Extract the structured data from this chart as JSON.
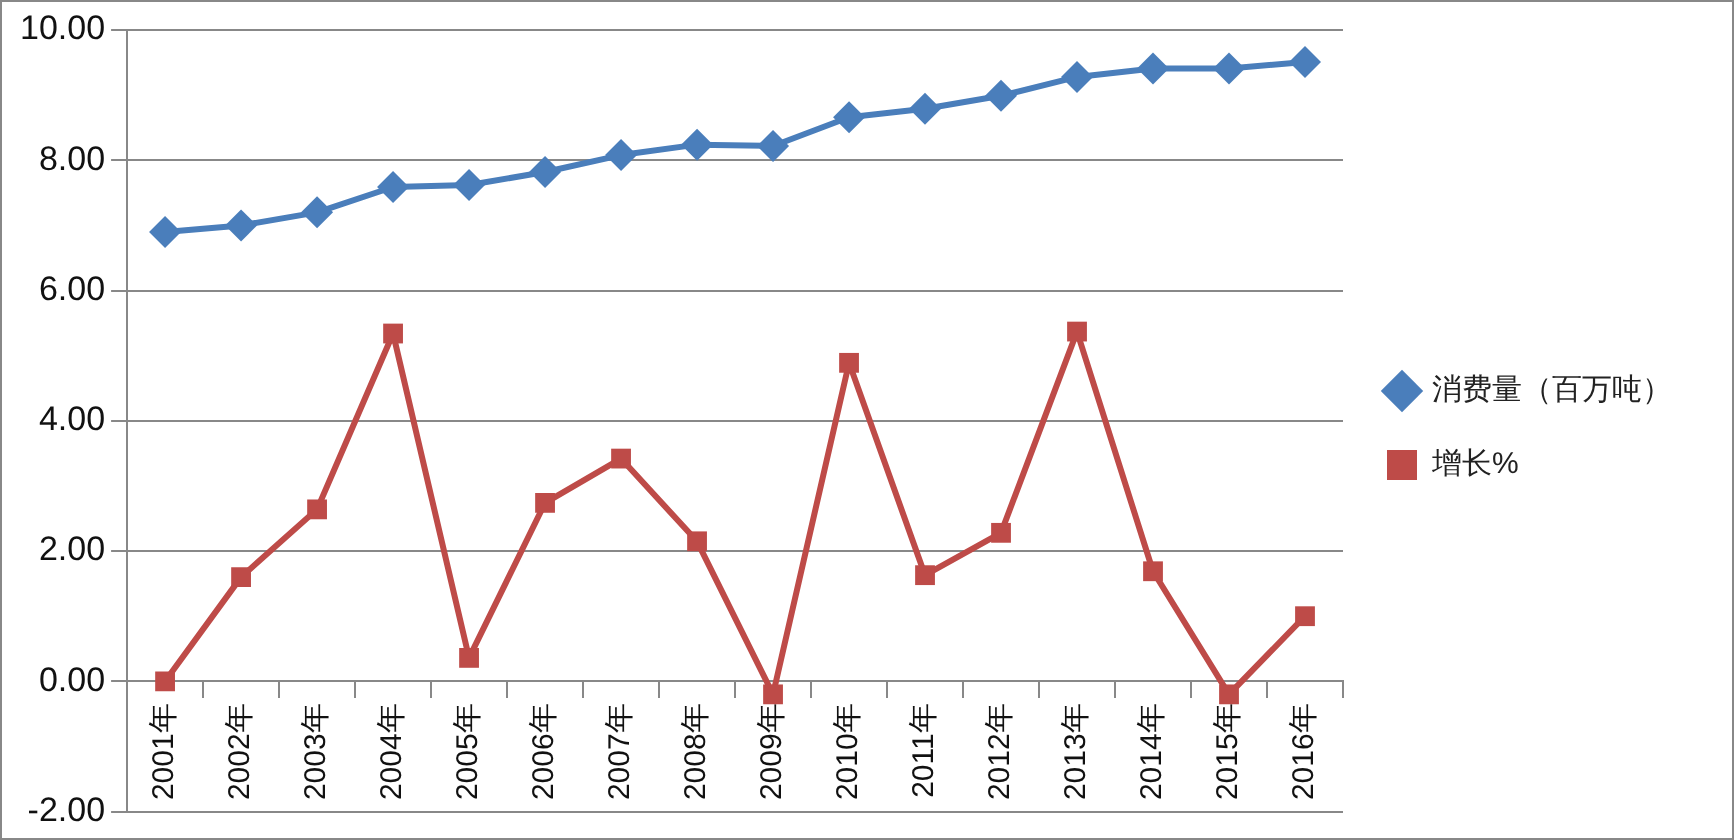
{
  "chart_data": {
    "type": "line",
    "categories": [
      "2001年",
      "2002年",
      "2003年",
      "2004年",
      "2005年",
      "2006年",
      "2007年",
      "2008年",
      "2009年",
      "2010年",
      "2011年",
      "2012年",
      "2013年",
      "2014年",
      "2015年",
      "2016年"
    ],
    "series": [
      {
        "name": "消费量（百万吨）",
        "color": "#4a7ebb",
        "marker": "diamond",
        "values": [
          6.9,
          7.0,
          7.2,
          7.59,
          7.62,
          7.82,
          8.08,
          8.24,
          8.22,
          8.66,
          8.79,
          8.99,
          9.28,
          9.41,
          9.41,
          9.51
        ]
      },
      {
        "name": "增长%",
        "color": "#be4b48",
        "marker": "square",
        "values": [
          0,
          1.6,
          2.64,
          5.34,
          0.36,
          2.74,
          3.42,
          2.15,
          -0.2,
          4.89,
          1.63,
          2.28,
          5.37,
          1.69,
          -0.2,
          1.0
        ]
      }
    ],
    "ylim": [
      -2,
      10
    ],
    "yticks": [
      {
        "value": -2,
        "label": "-2.00"
      },
      {
        "value": 0,
        "label": "0.00"
      },
      {
        "value": 2,
        "label": "2.00"
      },
      {
        "value": 4,
        "label": "4.00"
      },
      {
        "value": 6,
        "label": "6.00"
      },
      {
        "value": 8,
        "label": "8.00"
      },
      {
        "value": 10,
        "label": "10.00"
      }
    ],
    "grid": "y",
    "legend": "right"
  }
}
